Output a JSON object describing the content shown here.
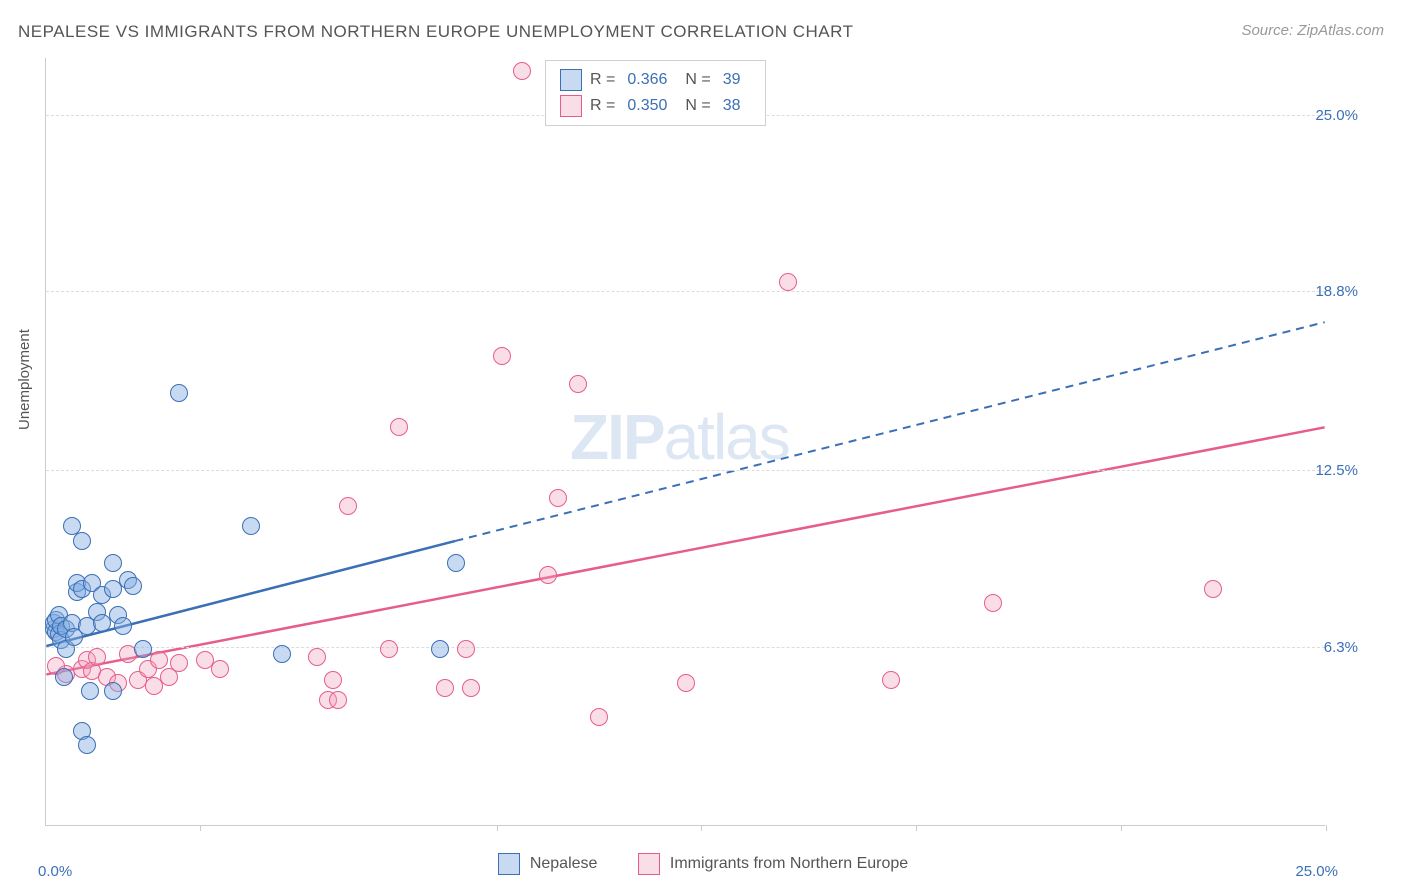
{
  "title": "NEPALESE VS IMMIGRANTS FROM NORTHERN EUROPE UNEMPLOYMENT CORRELATION CHART",
  "source": "Source: ZipAtlas.com",
  "ylabel": "Unemployment",
  "watermark_zip": "ZIP",
  "watermark_atlas": "atlas",
  "chart": {
    "type": "scatter",
    "xlim": [
      0,
      25
    ],
    "ylim": [
      0,
      27
    ],
    "x_origin_label": "0.0%",
    "x_max_label": "25.0%",
    "y_ticks": [
      {
        "value": 6.3,
        "label": "6.3%"
      },
      {
        "value": 12.5,
        "label": "12.5%"
      },
      {
        "value": 18.8,
        "label": "18.8%"
      },
      {
        "value": 25.0,
        "label": "25.0%"
      }
    ],
    "x_tick_positions": [
      3.0,
      8.8,
      12.8,
      17.0,
      21.0,
      25.0
    ],
    "background_color": "#ffffff",
    "grid_color": "#dcdcdc",
    "marker_radius": 9,
    "marker_border_width": 1.5,
    "line_width_solid": 2.5,
    "line_width_dash": 2,
    "series": {
      "blue": {
        "label": "Nepalese",
        "fill": "rgba(130,174,226,0.45)",
        "stroke": "#3b6fb6",
        "r_value": "0.366",
        "n_value": "39",
        "regression_solid": {
          "x1": 0,
          "y1": 6.3,
          "x2": 8.0,
          "y2": 10.0
        },
        "regression_dashed": {
          "x1": 8.0,
          "y1": 10.0,
          "x2": 25.0,
          "y2": 17.7
        },
        "points": [
          {
            "x": 0.15,
            "y": 6.9
          },
          {
            "x": 0.15,
            "y": 7.1
          },
          {
            "x": 0.2,
            "y": 6.8
          },
          {
            "x": 0.2,
            "y": 7.2
          },
          {
            "x": 0.25,
            "y": 6.7
          },
          {
            "x": 0.25,
            "y": 7.4
          },
          {
            "x": 0.3,
            "y": 6.5
          },
          {
            "x": 0.3,
            "y": 7.0
          },
          {
            "x": 0.35,
            "y": 5.2
          },
          {
            "x": 0.4,
            "y": 6.2
          },
          {
            "x": 0.4,
            "y": 6.9
          },
          {
            "x": 0.5,
            "y": 7.1
          },
          {
            "x": 0.5,
            "y": 10.5
          },
          {
            "x": 0.55,
            "y": 6.6
          },
          {
            "x": 0.6,
            "y": 8.2
          },
          {
            "x": 0.6,
            "y": 8.5
          },
          {
            "x": 0.7,
            "y": 10.0
          },
          {
            "x": 0.7,
            "y": 8.3
          },
          {
            "x": 0.7,
            "y": 3.3
          },
          {
            "x": 0.8,
            "y": 7.0
          },
          {
            "x": 0.8,
            "y": 2.8
          },
          {
            "x": 0.85,
            "y": 4.7
          },
          {
            "x": 0.9,
            "y": 8.5
          },
          {
            "x": 1.0,
            "y": 7.5
          },
          {
            "x": 1.1,
            "y": 8.1
          },
          {
            "x": 1.1,
            "y": 7.1
          },
          {
            "x": 1.3,
            "y": 9.2
          },
          {
            "x": 1.3,
            "y": 8.3
          },
          {
            "x": 1.3,
            "y": 4.7
          },
          {
            "x": 1.4,
            "y": 7.4
          },
          {
            "x": 1.5,
            "y": 7.0
          },
          {
            "x": 1.6,
            "y": 8.6
          },
          {
            "x": 1.7,
            "y": 8.4
          },
          {
            "x": 1.9,
            "y": 6.2
          },
          {
            "x": 2.6,
            "y": 15.2
          },
          {
            "x": 4.0,
            "y": 10.5
          },
          {
            "x": 4.6,
            "y": 6.0
          },
          {
            "x": 7.7,
            "y": 6.2
          },
          {
            "x": 8.0,
            "y": 9.2
          }
        ]
      },
      "pink": {
        "label": "Immigrants from Northern Europe",
        "fill": "rgba(242,160,185,0.35)",
        "stroke": "#e75d8a",
        "r_value": "0.350",
        "n_value": "38",
        "regression_solid": {
          "x1": 0,
          "y1": 5.3,
          "x2": 25.0,
          "y2": 14.0
        },
        "points": [
          {
            "x": 0.4,
            "y": 5.3
          },
          {
            "x": 0.7,
            "y": 5.5
          },
          {
            "x": 0.8,
            "y": 5.8
          },
          {
            "x": 0.9,
            "y": 5.4
          },
          {
            "x": 1.0,
            "y": 5.9
          },
          {
            "x": 1.2,
            "y": 5.2
          },
          {
            "x": 1.4,
            "y": 5.0
          },
          {
            "x": 1.6,
            "y": 6.0
          },
          {
            "x": 1.8,
            "y": 5.1
          },
          {
            "x": 2.0,
            "y": 5.5
          },
          {
            "x": 2.1,
            "y": 4.9
          },
          {
            "x": 2.2,
            "y": 5.8
          },
          {
            "x": 2.4,
            "y": 5.2
          },
          {
            "x": 2.6,
            "y": 5.7
          },
          {
            "x": 3.1,
            "y": 5.8
          },
          {
            "x": 3.4,
            "y": 5.5
          },
          {
            "x": 5.3,
            "y": 5.9
          },
          {
            "x": 5.5,
            "y": 4.4
          },
          {
            "x": 5.6,
            "y": 5.1
          },
          {
            "x": 5.7,
            "y": 4.4
          },
          {
            "x": 5.9,
            "y": 11.2
          },
          {
            "x": 6.7,
            "y": 6.2
          },
          {
            "x": 6.9,
            "y": 14.0
          },
          {
            "x": 7.8,
            "y": 4.8
          },
          {
            "x": 8.2,
            "y": 6.2
          },
          {
            "x": 8.3,
            "y": 4.8
          },
          {
            "x": 8.9,
            "y": 16.5
          },
          {
            "x": 9.3,
            "y": 26.5
          },
          {
            "x": 9.8,
            "y": 8.8
          },
          {
            "x": 10.0,
            "y": 11.5
          },
          {
            "x": 10.4,
            "y": 15.5
          },
          {
            "x": 10.8,
            "y": 3.8
          },
          {
            "x": 12.5,
            "y": 5.0
          },
          {
            "x": 14.5,
            "y": 19.1
          },
          {
            "x": 16.5,
            "y": 5.1
          },
          {
            "x": 18.5,
            "y": 7.8
          },
          {
            "x": 22.8,
            "y": 8.3
          },
          {
            "x": 0.2,
            "y": 5.6
          }
        ]
      }
    }
  },
  "legend_top": {
    "r_label": "R =",
    "n_label": "N ="
  }
}
